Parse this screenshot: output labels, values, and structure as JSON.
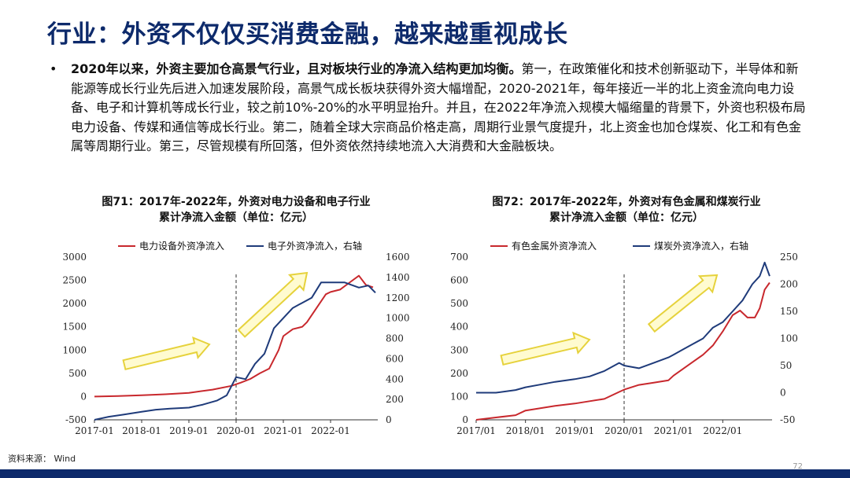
{
  "slide": {
    "title": "行业：外资不仅仅买消费金融，越来越重视成长",
    "bullet_bold": "2020年以来，外资主要加仓高景气行业，且对板块行业的净流入结构更加均衡。",
    "bullet_text": "第一，在政策催化和技术创新驱动下，半导体和新能源等成长行业先后进入加速发展阶段，高景气成长板块获得外资大幅增配，2020-2021年，每年接近一半的北上资金流向电力设备、电子和计算机等成长行业，较之前10%-20%的水平明显抬升。并且，在2022年净流入规模大幅缩量的背景下，外资也积极布局电力设备、传媒和通信等成长行业。第二，随着全球大宗商品价格走高，周期行业景气度提升，北上资金也加仓煤炭、化工和有色金属等周期行业。第三，尽管规模有所回落，但外资依然持续地流入大消费和大金融板块。",
    "bullet_marker": "•",
    "source": "资料来源： Wind",
    "page_number": "72"
  },
  "figures": [
    {
      "title_line1": "图71：2017年-2022年，外资对电力设备和电子行业",
      "title_line2": "累计净流入金额（单位：亿元）"
    },
    {
      "title_line1": "图72：2017年-2022年，外资对有色金属和煤炭行业",
      "title_line2": "累计净流入金额（单位：亿元）"
    }
  ],
  "colors": {
    "red": "#c8282d",
    "navy": "#1f3b7a",
    "arrow_fill": "#fffbd0",
    "arrow_stroke": "#e6d23c",
    "title": "#0d2a6b"
  },
  "chart_data": [
    {
      "type": "line",
      "x_tick_labels": [
        "2017-01",
        "2018-01",
        "2019-01",
        "2020-01",
        "2021-01",
        "2022-01"
      ],
      "x_range": [
        2017.0,
        2023.0
      ],
      "vline_x": 2020.0,
      "left_axis": {
        "ylim": [
          -500,
          3000
        ],
        "ticks": [
          -500,
          0,
          500,
          1000,
          1500,
          2000,
          2500,
          3000
        ]
      },
      "right_axis": {
        "ylim": [
          0,
          1600
        ],
        "ticks": [
          0,
          200,
          400,
          600,
          800,
          1000,
          1200,
          1400,
          1600
        ]
      },
      "legend": [
        "电力设备外资净流入",
        "电子外资净流入，右轴"
      ],
      "series": [
        {
          "name": "电力设备外资净流入",
          "axis": "left",
          "color": "#c8282d",
          "x": [
            2017.0,
            2017.5,
            2018.0,
            2018.5,
            2019.0,
            2019.5,
            2019.9,
            2020.1,
            2020.3,
            2020.5,
            2020.7,
            2020.9,
            2021.0,
            2021.2,
            2021.4,
            2021.5,
            2021.7,
            2021.9,
            2022.0,
            2022.2,
            2022.4,
            2022.6,
            2022.75,
            2022.9
          ],
          "y": [
            0,
            10,
            30,
            50,
            80,
            150,
            230,
            300,
            380,
            500,
            600,
            1000,
            1300,
            1450,
            1500,
            1600,
            1900,
            2200,
            2250,
            2300,
            2450,
            2600,
            2400,
            2350
          ]
        },
        {
          "name": "电子外资净流入，右轴",
          "axis": "right",
          "color": "#1f3b7a",
          "x": [
            2017.0,
            2017.3,
            2017.6,
            2018.0,
            2018.3,
            2018.6,
            2019.0,
            2019.3,
            2019.6,
            2019.8,
            2020.0,
            2020.2,
            2020.4,
            2020.6,
            2020.8,
            2021.0,
            2021.2,
            2021.4,
            2021.6,
            2021.8,
            2022.0,
            2022.3,
            2022.6,
            2022.8,
            2022.95
          ],
          "y": [
            0,
            30,
            50,
            80,
            100,
            110,
            120,
            150,
            190,
            240,
            420,
            400,
            550,
            650,
            900,
            1000,
            1100,
            1150,
            1200,
            1350,
            1350,
            1350,
            1300,
            1320,
            1250
          ]
        }
      ]
    },
    {
      "type": "line",
      "x_tick_labels": [
        "2017/01",
        "2018/01",
        "2019/01",
        "2020/01",
        "2021/01",
        "2022/01"
      ],
      "x_range": [
        2017.0,
        2023.0
      ],
      "vline_x": 2020.0,
      "left_axis": {
        "ylim": [
          0,
          700
        ],
        "ticks": [
          0,
          100,
          200,
          300,
          400,
          500,
          600,
          700
        ]
      },
      "right_axis": {
        "ylim": [
          -50,
          250
        ],
        "ticks": [
          -50,
          0,
          50,
          100,
          150,
          200,
          250
        ]
      },
      "legend": [
        "有色金属外资净流入",
        "煤炭外资净流入，右轴"
      ],
      "series": [
        {
          "name": "有色金属外资净流入",
          "axis": "left",
          "color": "#c8282d",
          "x": [
            2017.0,
            2017.4,
            2017.8,
            2018.0,
            2018.3,
            2018.6,
            2019.0,
            2019.3,
            2019.6,
            2019.9,
            2020.0,
            2020.3,
            2020.6,
            2020.9,
            2021.0,
            2021.2,
            2021.4,
            2021.6,
            2021.8,
            2022.0,
            2022.2,
            2022.35,
            2022.5,
            2022.65,
            2022.75,
            2022.85,
            2022.95
          ],
          "y": [
            0,
            10,
            20,
            40,
            50,
            60,
            70,
            80,
            90,
            120,
            130,
            150,
            160,
            170,
            190,
            220,
            250,
            280,
            320,
            380,
            450,
            470,
            440,
            440,
            480,
            560,
            590
          ]
        },
        {
          "name": "煤炭外资净流入，右轴",
          "axis": "right",
          "color": "#1f3b7a",
          "x": [
            2017.0,
            2017.4,
            2017.8,
            2018.0,
            2018.3,
            2018.6,
            2019.0,
            2019.3,
            2019.6,
            2019.9,
            2020.0,
            2020.3,
            2020.6,
            2020.9,
            2021.0,
            2021.2,
            2021.4,
            2021.6,
            2021.8,
            2022.0,
            2022.2,
            2022.4,
            2022.6,
            2022.75,
            2022.85,
            2022.95
          ],
          "y": [
            0,
            0,
            5,
            10,
            15,
            20,
            25,
            30,
            40,
            55,
            50,
            45,
            55,
            65,
            70,
            80,
            90,
            100,
            120,
            130,
            150,
            170,
            200,
            215,
            240,
            215
          ]
        }
      ]
    }
  ]
}
